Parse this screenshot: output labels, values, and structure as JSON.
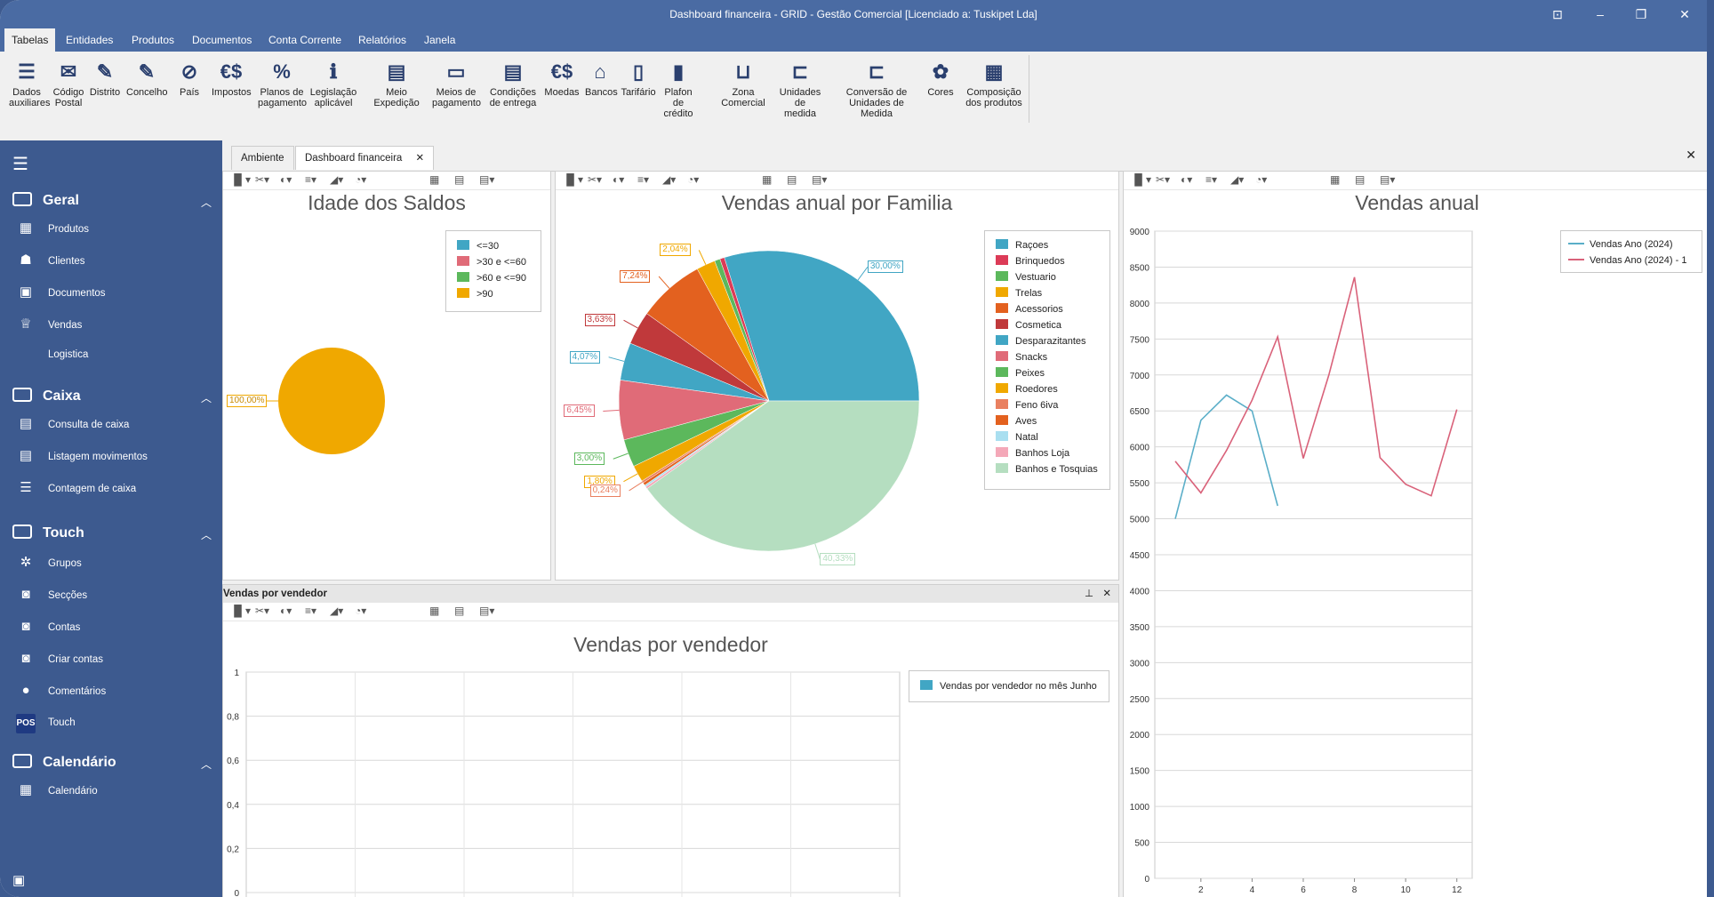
{
  "window": {
    "title": "Dashboard financeira - GRID - Gestão Comercial    [Licenciado a: Tuskipet Lda]"
  },
  "menu": [
    "Tabelas",
    "Entidades",
    "Produtos",
    "Documentos",
    "Conta Corrente",
    "Relatórios",
    "Janela"
  ],
  "ribbon": [
    {
      "l1": "Dados",
      "l2": "auxiliares",
      "icon": "list-icon",
      "g": "☰"
    },
    {
      "l1": "Código",
      "l2": "Postal",
      "icon": "envelope-icon",
      "g": "✉"
    },
    {
      "l1": "Distrito",
      "l2": "",
      "icon": "pin-icon",
      "g": "✎"
    },
    {
      "l1": "Concelho",
      "l2": "",
      "icon": "pin-icon",
      "g": "✎"
    },
    {
      "l1": "País",
      "l2": "",
      "icon": "compass-icon",
      "g": "⊘"
    },
    {
      "l1": "Impostos",
      "l2": "",
      "icon": "currency-icon",
      "g": "€$"
    },
    {
      "l1": "Planos de",
      "l2": "pagamento",
      "icon": "percent-icon",
      "g": "%"
    },
    {
      "l1": "Legislação",
      "l2": "aplicável",
      "icon": "info-icon",
      "g": "ℹ"
    },
    {
      "l1": "Meio Expedição",
      "l2": "",
      "icon": "truck-icon",
      "g": "▤"
    },
    {
      "l1": "Meios de",
      "l2": "pagamento",
      "icon": "wallet-icon",
      "g": "▭"
    },
    {
      "l1": "Condições",
      "l2": "de entrega",
      "icon": "truck-icon",
      "g": "▤"
    },
    {
      "l1": "Moedas",
      "l2": "",
      "icon": "currency-icon",
      "g": "€$"
    },
    {
      "l1": "Bancos",
      "l2": "",
      "icon": "bank-icon",
      "g": "⌂"
    },
    {
      "l1": "Tarifário",
      "l2": "",
      "icon": "tariff-icon",
      "g": "▯"
    },
    {
      "l1": "Plafon de",
      "l2": "crédito",
      "icon": "credit-icon",
      "g": "▮"
    },
    {
      "l1": "Zona Comercial",
      "l2": "",
      "icon": "basket-icon",
      "g": "⊔"
    },
    {
      "l1": "Unidades",
      "l2": "de medida",
      "icon": "measure-icon",
      "g": "⊏"
    },
    {
      "l1": "Conversão de",
      "l2": "Unidades de Medida",
      "icon": "convert-icon",
      "g": "⊏"
    },
    {
      "l1": "Cores",
      "l2": "",
      "icon": "palette-icon",
      "g": "✿"
    },
    {
      "l1": "Composição",
      "l2": "dos produtos",
      "icon": "grid-icon",
      "g": "▦"
    }
  ],
  "sidebar": {
    "sections": [
      {
        "label": "Geral",
        "items": [
          {
            "label": "Produtos",
            "g": "▦"
          },
          {
            "label": "Clientes",
            "g": "☗"
          },
          {
            "label": "Documentos",
            "g": "▣"
          },
          {
            "label": "Vendas",
            "g": "♕"
          },
          {
            "label": "Logistica",
            "g": ""
          }
        ]
      },
      {
        "label": "Caixa",
        "items": [
          {
            "label": "Consulta de caixa",
            "g": "▤"
          },
          {
            "label": "Listagem movimentos",
            "g": "▤"
          },
          {
            "label": "Contagem de caixa",
            "g": "☰"
          }
        ]
      },
      {
        "label": "Touch",
        "items": [
          {
            "label": "Grupos",
            "g": "✲"
          },
          {
            "label": "Secções",
            "g": "◙"
          },
          {
            "label": "Contas",
            "g": "◙"
          },
          {
            "label": "Criar contas",
            "g": "◙"
          },
          {
            "label": "Comentários",
            "g": "●"
          },
          {
            "label": "Touch",
            "g": "POS"
          }
        ]
      },
      {
        "label": "Calendário",
        "items": [
          {
            "label": "Calendário",
            "g": "▦"
          }
        ]
      }
    ]
  },
  "tabs": [
    "Ambiente",
    "Dashboard financeira"
  ],
  "colors": {
    "blue": "#41a6c4",
    "red": "#dc3b57",
    "green": "#5cb85c",
    "gold": "#f0a800",
    "orange": "#e3611f",
    "darkred": "#c0393b",
    "pink": "#e06b78",
    "lightgreen": "#b5dec0",
    "lightblue": "#a9dff0",
    "lightpink": "#f4a8b8",
    "salmon": "#e98060"
  },
  "charts": {
    "idade": {
      "title": "Idade dos Saldos",
      "chart_data": {
        "type": "pie",
        "categories": [
          "<=30",
          ">30 e <=60",
          ">60 e <=90",
          ">90"
        ],
        "values": [
          0,
          0,
          0,
          100
        ],
        "labels": [
          "100,00%"
        ]
      }
    },
    "familia": {
      "title": "Vendas anual por Familia",
      "chart_data": {
        "type": "pie",
        "categories": [
          "Raçoes",
          "Brinquedos",
          "Vestuario",
          "Trelas",
          "Acessorios",
          "Cosmetica",
          "Desparazitantes",
          "Snacks",
          "Peixes",
          "Roedores",
          "Feno 6iva",
          "Aves",
          "Natal",
          "Banhos Loja",
          "Banhos e Tosquias"
        ],
        "values": [
          30.0,
          0.5,
          0.6,
          2.04,
          7.24,
          3.63,
          4.07,
          6.45,
          3.0,
          1.8,
          0.24,
          0.3,
          0.2,
          0.24,
          40.33
        ],
        "labels": [
          "30,00%",
          "",
          "",
          "2,04%",
          "7,24%",
          "3,63%",
          "4,07%",
          "6,45%",
          "3,00%",
          "1,80%",
          "0,24%",
          "",
          "",
          "",
          "40,33%"
        ]
      }
    },
    "anual": {
      "title": "Vendas anual",
      "chart_data": {
        "type": "line",
        "ylim": [
          0,
          9000
        ],
        "yticks": [
          "0",
          "500",
          "1000",
          "1500",
          "2000",
          "2500",
          "3000",
          "3500",
          "4000",
          "4500",
          "5000",
          "5500",
          "6000",
          "6500",
          "7000",
          "7500",
          "8000",
          "8500",
          "9000"
        ],
        "xticks": [
          "2",
          "4",
          "6",
          "8",
          "10",
          "12"
        ],
        "series": [
          {
            "name": "Vendas Ano (2024)",
            "x": [
              1,
              2,
              3,
              4,
              5
            ],
            "values": [
              5000,
              6370,
              6720,
              6500,
              5180
            ]
          },
          {
            "name": "Vendas Ano (2024) - 1",
            "x": [
              1,
              2,
              3,
              4,
              5,
              6,
              7,
              8,
              9,
              10,
              11,
              12
            ],
            "values": [
              5800,
              5360,
              5950,
              6650,
              7530,
              5840,
              7000,
              8360,
              5850,
              5480,
              5320,
              6520
            ]
          }
        ]
      }
    },
    "vendedor": {
      "title": "Vendas por vendedor",
      "dock_title": "Vendas por vendedor",
      "chart_data": {
        "type": "bar",
        "ylim": [
          0,
          1
        ],
        "yticks": [
          "0",
          "0,2",
          "0,4",
          "0,6",
          "0,8",
          "1"
        ],
        "series": [
          {
            "name": "Vendas por vendedor no mês Junho",
            "values": []
          }
        ]
      }
    }
  }
}
